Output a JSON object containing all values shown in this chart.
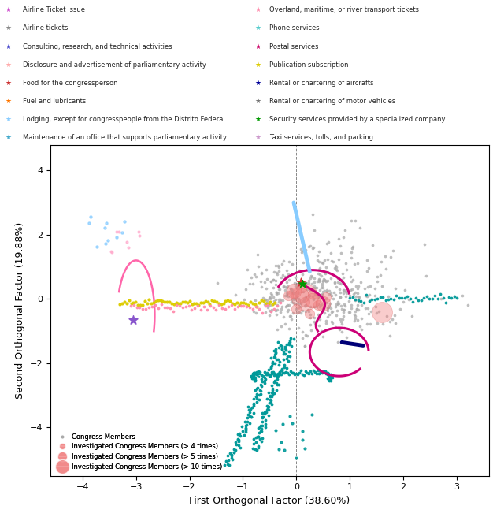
{
  "xlabel": "First Orthogonal Factor (38.60%)",
  "ylabel": "Second Orthogonal Factor (19.88%)",
  "xlim": [
    -4.6,
    3.6
  ],
  "ylim": [
    -5.5,
    4.8
  ],
  "xticks": [
    -4,
    -3,
    -2,
    -1,
    0,
    1,
    2,
    3
  ],
  "yticks": [
    -4,
    -2,
    0,
    2,
    4
  ],
  "background": "#ffffff",
  "category_legend": [
    {
      "label": "Airline Ticket Issue",
      "color": "#cc44cc"
    },
    {
      "label": "Airline tickets",
      "color": "#888888"
    },
    {
      "label": "Consulting, research, and technical activities",
      "color": "#4444cc"
    },
    {
      "label": "Disclosure and advertisement of parliamentary activity",
      "color": "#ffaaaa"
    },
    {
      "label": "Food for the congressperson",
      "color": "#cc3333"
    },
    {
      "label": "Fuel and lubricants",
      "color": "#ff7700"
    },
    {
      "label": "Lodging, except for congresspeople from the Distrito Federal",
      "color": "#88ccff"
    },
    {
      "label": "Maintenance of an office that supports parliamentary activity",
      "color": "#44aacc"
    },
    {
      "label": "Overland, maritime, or river transport tickets",
      "color": "#ff88aa"
    },
    {
      "label": "Phone services",
      "color": "#55cccc"
    },
    {
      "label": "Postal services",
      "color": "#cc0066"
    },
    {
      "label": "Publication subscription",
      "color": "#ddcc00"
    },
    {
      "label": "Rental or chartering of aircrafts",
      "color": "#000099"
    },
    {
      "label": "Rental or chartering of motor vehicles",
      "color": "#777777"
    },
    {
      "label": "Security services provided by a specialized company",
      "color": "#009900"
    },
    {
      "label": "Taxi services, tolls, and parking",
      "color": "#cc99cc"
    }
  ],
  "seed": 42
}
